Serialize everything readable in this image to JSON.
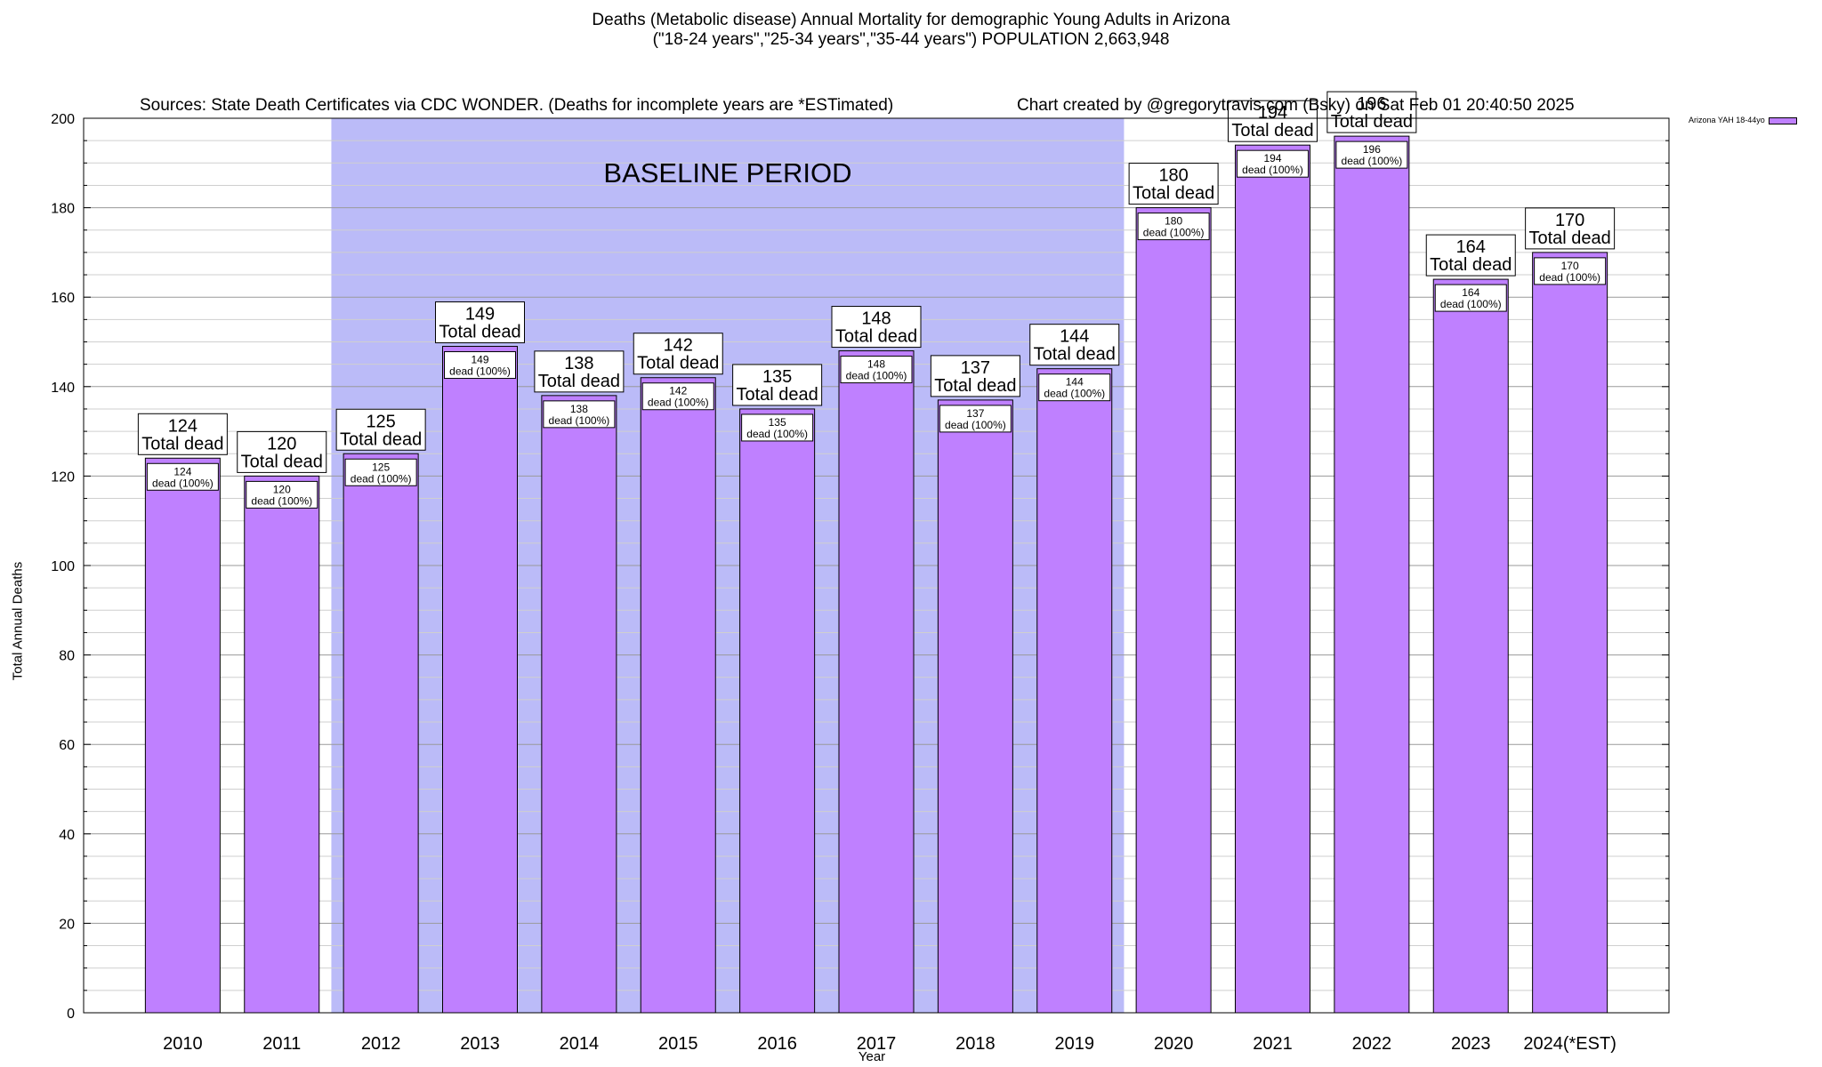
{
  "header": {
    "title_line1": "Deaths (Metabolic disease) Annual Mortality for demographic Young Adults in Arizona",
    "title_line2": "(\"18-24 years\",\"25-34 years\",\"35-44 years\") POPULATION 2,663,948",
    "sources": "Sources: State Death Certificates via CDC WONDER. (Deaths for incomplete years are *ESTimated)",
    "credit": "Chart created by @gregorytravis.com (Bsky) on Sat Feb 01 20:40:50 2025"
  },
  "legend": {
    "label": "Arizona YAH 18-44yo"
  },
  "chart_data": {
    "type": "bar",
    "title": "Deaths (Metabolic disease) Annual Mortality for demographic Young Adults in Arizona",
    "xlabel": "Year",
    "ylabel": "Total Annual Deaths",
    "ylim": [
      0,
      200
    ],
    "yticks": [
      0,
      20,
      40,
      60,
      80,
      100,
      120,
      140,
      160,
      180,
      200
    ],
    "grid": true,
    "legend_position": "top-right",
    "categories": [
      "2010",
      "2011",
      "2012",
      "2013",
      "2014",
      "2015",
      "2016",
      "2017",
      "2018",
      "2019",
      "2020",
      "2021",
      "2022",
      "2023",
      "2024(*EST)"
    ],
    "series": [
      {
        "name": "Arizona YAH 18-44yo",
        "values": [
          124,
          120,
          125,
          149,
          138,
          142,
          135,
          148,
          137,
          144,
          180,
          194,
          196,
          164,
          170
        ],
        "color": "#bf80ff"
      }
    ],
    "bar_top_label": "Total dead",
    "bar_inner_label": "dead (100%)",
    "annotation": {
      "text": "BASELINE PERIOD",
      "from": "2012",
      "to": "2019",
      "color": "#bbbbf8"
    }
  }
}
